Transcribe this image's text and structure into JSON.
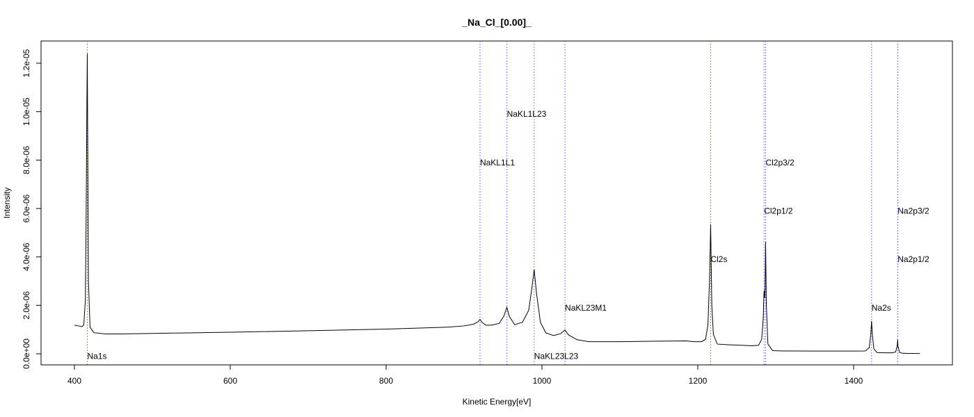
{
  "chart_data": {
    "type": "line",
    "title": "_Na_Cl_[0.00]_",
    "xlabel": "Kinetic Energy[eV]",
    "ylabel": "Intensity",
    "xlim": [
      400,
      1490
    ],
    "ylim": [
      0,
      1.25e-05
    ],
    "x_ticks": [
      400,
      600,
      800,
      1000,
      1200,
      1400
    ],
    "x_tick_labels": [
      "400",
      "600",
      "800",
      "1000",
      "1200",
      "1400"
    ],
    "y_ticks": [
      0,
      2e-06,
      4e-06,
      6e-06,
      8e-06,
      1e-05,
      1.2e-05
    ],
    "y_tick_labels": [
      "0.0e+00",
      "2.0e-06",
      "4.0e-06",
      "6.0e-06",
      "8.0e-06",
      "1.0e-05",
      "1.2e-05"
    ],
    "grid": false,
    "line_color": "#000000",
    "marker_color": "#8080ff",
    "peaks": [
      {
        "name": "Na1s",
        "x": 416.5,
        "label_y": -1e-07
      },
      {
        "name": "NaKL1L1",
        "x": 920.5,
        "label_y": 7.9e-06
      },
      {
        "name": "NaKL1L23",
        "x": 955,
        "label_y": 9.9e-06
      },
      {
        "name": "NaKL23L23",
        "x": 990,
        "label_y": -1e-07
      },
      {
        "name": "NaKL23M1",
        "x": 1029.5,
        "label_y": 1.9e-06
      },
      {
        "name": "Cl2s",
        "x": 1216.5,
        "label_y": 3.9e-06
      },
      {
        "name": "Cl2p1/2",
        "x": 1285,
        "label_y": 5.9e-06
      },
      {
        "name": "Cl2p3/2",
        "x": 1287,
        "label_y": 7.9e-06
      },
      {
        "name": "Na2s",
        "x": 1423,
        "label_y": 1.9e-06
      },
      {
        "name": "Na2p1/2",
        "x": 1456.5,
        "label_y": 3.9e-06
      },
      {
        "name": "Na2p3/2",
        "x": 1456.5,
        "label_y": 5.9e-06
      }
    ],
    "spectrum": {
      "x": [
        400,
        405,
        410,
        412,
        414,
        415,
        416,
        416.5,
        417,
        418,
        420,
        425,
        440,
        460,
        500,
        600,
        700,
        800,
        880,
        900,
        912,
        918,
        920.5,
        923,
        928,
        935,
        945,
        951,
        955,
        958,
        965,
        975,
        983,
        987,
        990,
        993,
        998,
        1005,
        1015,
        1024,
        1029.5,
        1034,
        1045,
        1060,
        1100,
        1150,
        1185,
        1195,
        1205,
        1210,
        1213,
        1215,
        1216.5,
        1218,
        1220,
        1225,
        1240,
        1255,
        1270,
        1278,
        1282,
        1284,
        1285,
        1286,
        1286.5,
        1287,
        1288,
        1290,
        1296,
        1310,
        1350,
        1400,
        1415,
        1420,
        1422,
        1423,
        1424,
        1426,
        1430,
        1440,
        1450,
        1454,
        1456,
        1456.5,
        1457,
        1459,
        1463,
        1470,
        1480,
        1485
      ],
      "y": [
        1.18e-06,
        1.15e-06,
        1.12e-06,
        1.2e-06,
        2.2e-06,
        5.5e-06,
        1.05e-05,
        1.24e-05,
        9e-06,
        3e-06,
        1.1e-06,
        8.7e-07,
        8.2e-07,
        8.2e-07,
        8.4e-07,
        8.9e-07,
        9.5e-07,
        1.02e-06,
        1.1e-06,
        1.15e-06,
        1.22e-06,
        1.32e-06,
        1.42e-06,
        1.3e-06,
        1.18e-06,
        1.18e-06,
        1.25e-06,
        1.55e-06,
        1.92e-06,
        1.55e-06,
        1.2e-06,
        1.3e-06,
        1.8e-06,
        2.7e-06,
        3.48e-06,
        2.5e-06,
        1.3e-06,
        8.6e-07,
        7.5e-07,
        8.3e-07,
        9.8e-07,
        7.8e-07,
        5.8e-07,
        5e-07,
        5e-07,
        5.2e-07,
        5.3e-07,
        5e-07,
        5e-07,
        6e-07,
        1.2e-06,
        3e-06,
        5.35e-06,
        2e-06,
        8e-07,
        4e-07,
        3.7e-07,
        3.5e-07,
        3.3e-07,
        3.5e-07,
        6e-07,
        1.5e-06,
        2.6e-06,
        2.3e-06,
        3.2e-06,
        4.62e-06,
        2e-06,
        4e-07,
        1.3e-07,
        1.15e-07,
        1.1e-07,
        1.1e-07,
        1.15e-07,
        2.5e-07,
        8e-07,
        1.35e-06,
        8e-07,
        2e-07,
        5e-08,
        4e-08,
        4e-08,
        8e-08,
        3.5e-07,
        5.8e-07,
        3e-07,
        5e-08,
        2e-08,
        1.5e-08,
        1.2e-08,
        1.2e-08
      ]
    }
  }
}
